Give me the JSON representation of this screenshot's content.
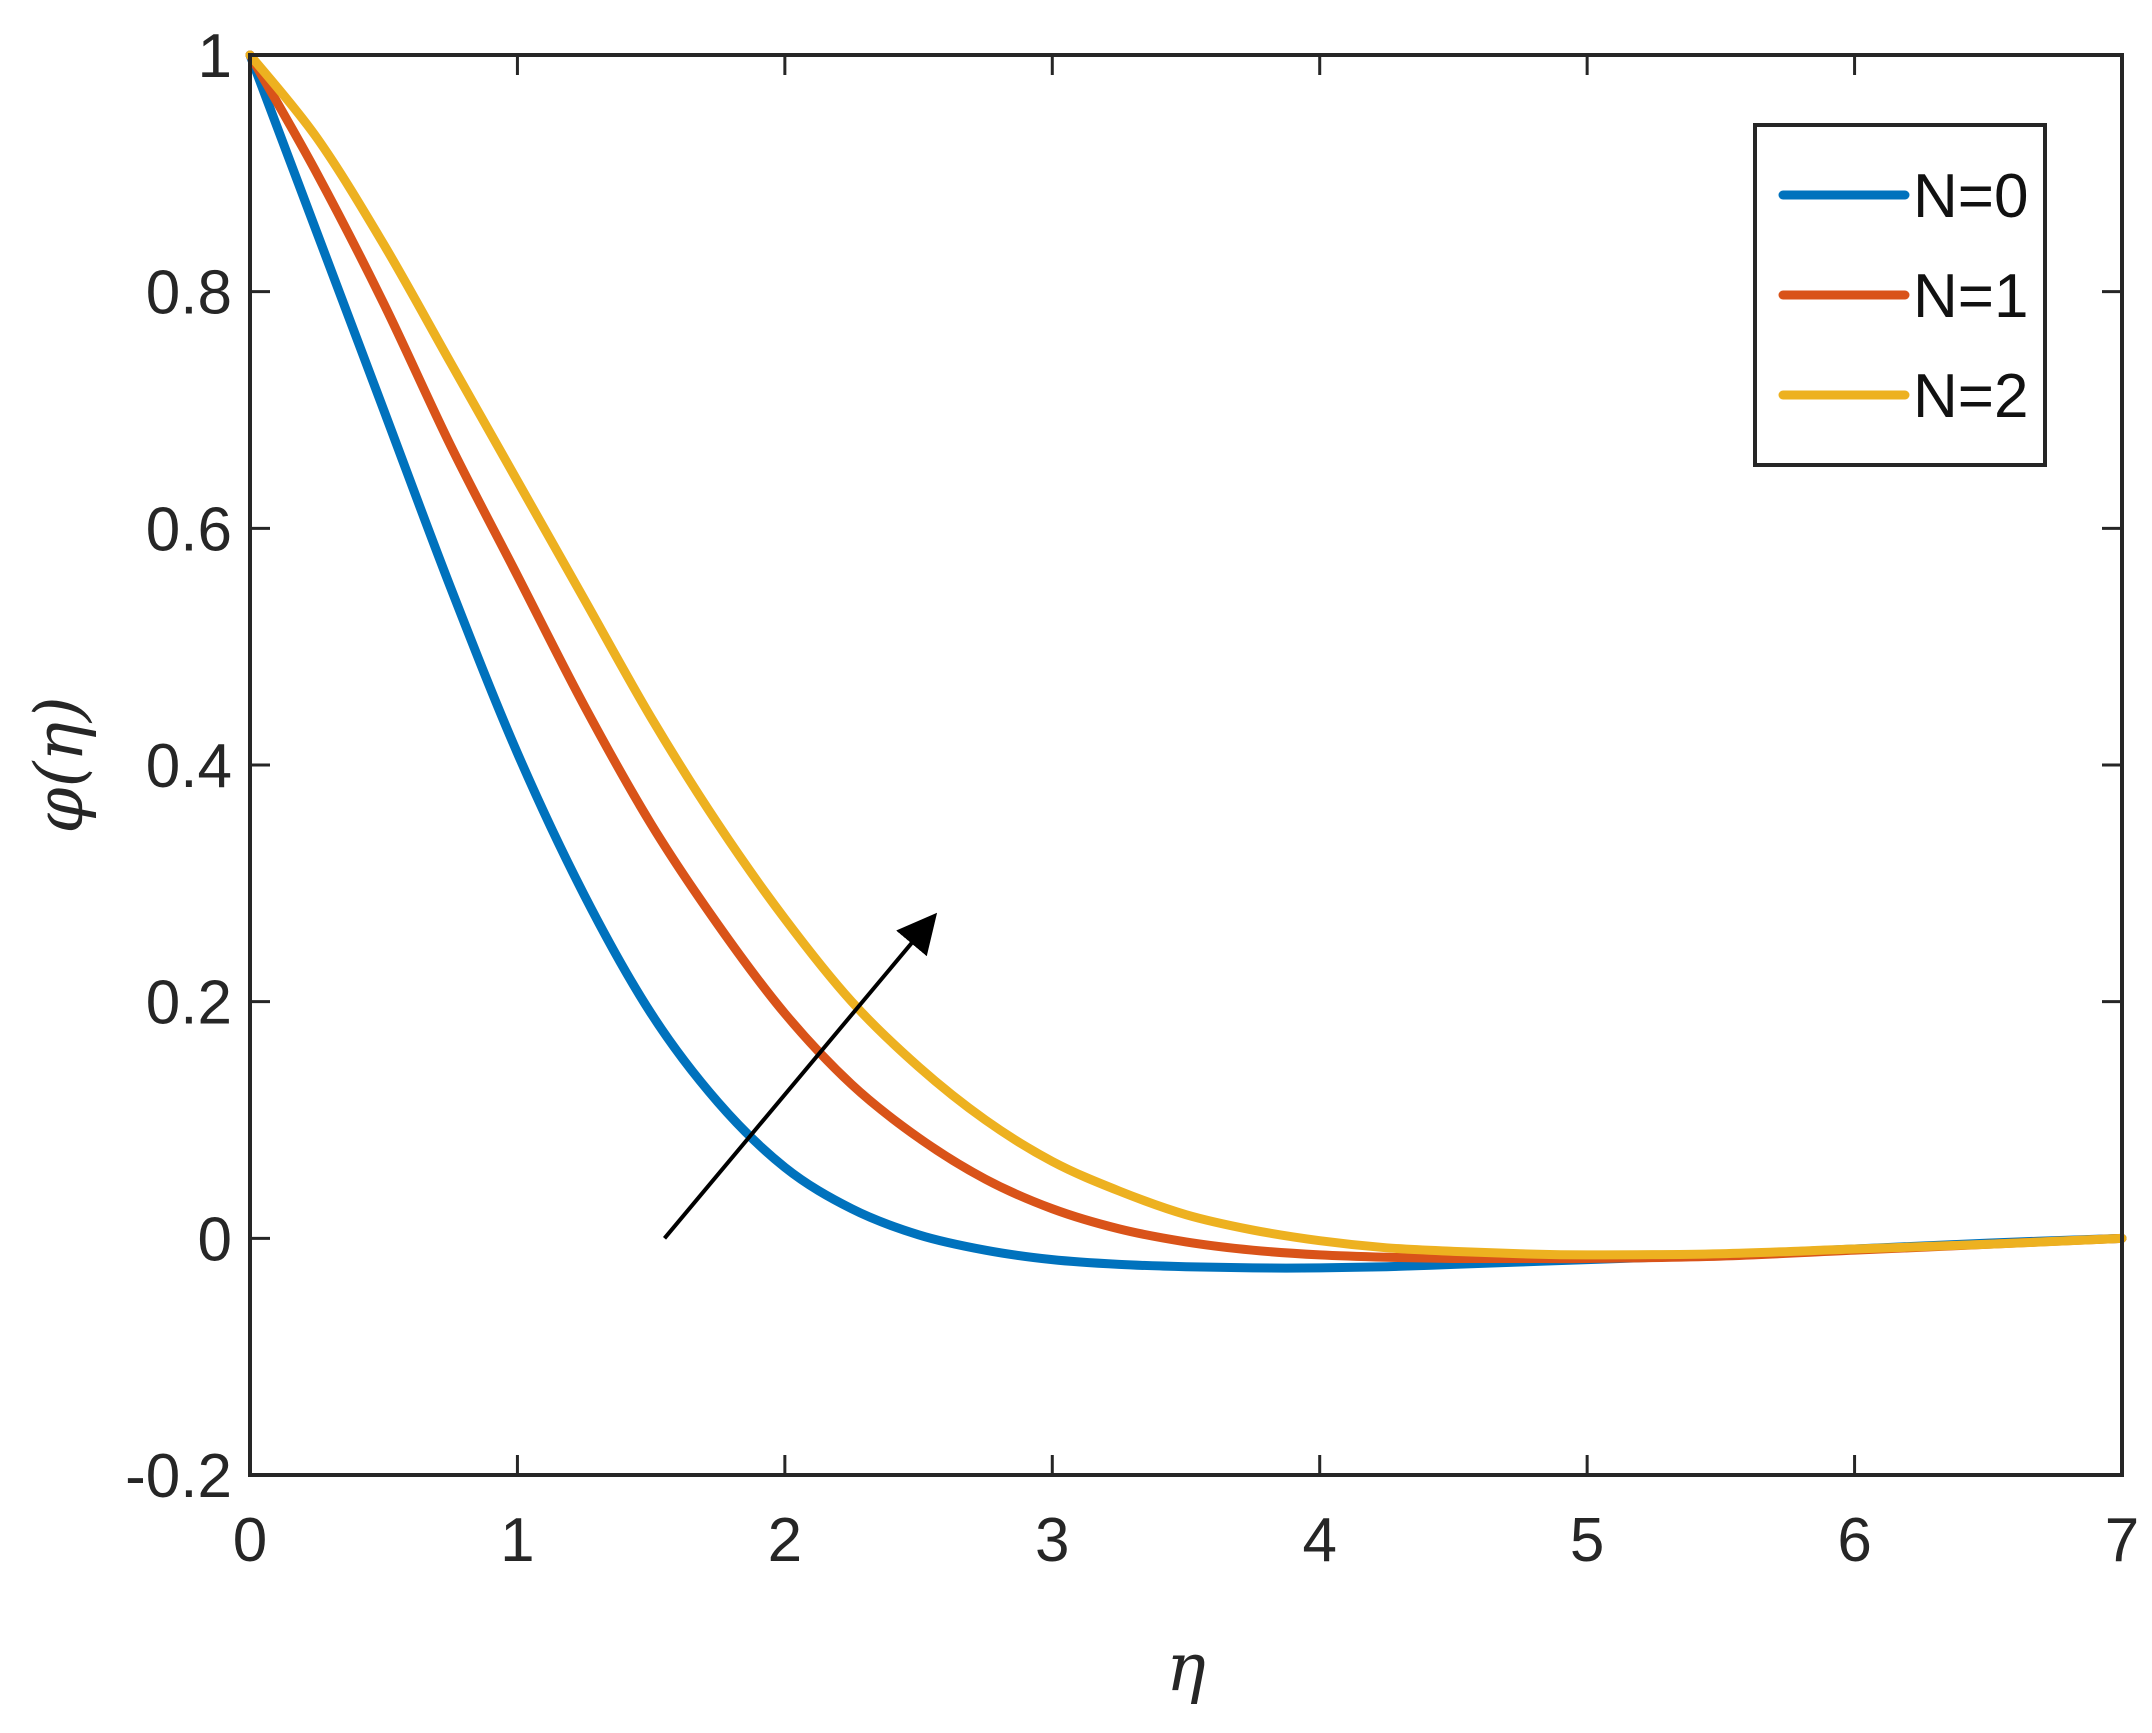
{
  "chart_data": {
    "type": "line",
    "title": "",
    "xlabel": "η",
    "ylabel": "φ(η)",
    "xlim": [
      0,
      7
    ],
    "ylim": [
      -0.2,
      1
    ],
    "grid": false,
    "legend_position": "top-right",
    "x_ticks": [
      0,
      1,
      2,
      3,
      4,
      5,
      6,
      7
    ],
    "x_tick_labels": [
      "0",
      "1",
      "2",
      "3",
      "4",
      "5",
      "6",
      "7"
    ],
    "y_ticks": [
      -0.2,
      0,
      0.2,
      0.4,
      0.6,
      0.8,
      1
    ],
    "y_tick_labels": [
      "-0.2",
      "0",
      "0.2",
      "0.4",
      "0.6",
      "0.8",
      "1"
    ],
    "x": [
      0,
      0.25,
      0.5,
      0.75,
      1,
      1.25,
      1.5,
      1.75,
      2,
      2.25,
      2.5,
      2.75,
      3,
      3.25,
      3.5,
      3.75,
      4,
      4.25,
      4.5,
      4.75,
      5,
      5.5,
      6,
      6.5,
      7
    ],
    "series": [
      {
        "name": "N=0",
        "color": "#0072BD",
        "values": [
          1,
          0.85,
          0.7,
          0.55,
          0.41,
          0.29,
          0.19,
          0.115,
          0.06,
          0.025,
          0.003,
          -0.01,
          -0.018,
          -0.022,
          -0.024,
          -0.025,
          -0.025,
          -0.024,
          -0.022,
          -0.02,
          -0.018,
          -0.014,
          -0.009,
          -0.004,
          0
        ]
      },
      {
        "name": "N=1",
        "color": "#D95319",
        "values": [
          1,
          0.9,
          0.79,
          0.67,
          0.56,
          0.45,
          0.35,
          0.265,
          0.19,
          0.13,
          0.085,
          0.05,
          0.025,
          0.008,
          -0.003,
          -0.01,
          -0.014,
          -0.016,
          -0.017,
          -0.017,
          -0.017,
          -0.015,
          -0.01,
          -0.005,
          0
        ]
      },
      {
        "name": "N=2",
        "color": "#EDB120",
        "values": [
          1,
          0.93,
          0.84,
          0.74,
          0.64,
          0.54,
          0.44,
          0.35,
          0.27,
          0.2,
          0.145,
          0.1,
          0.065,
          0.04,
          0.02,
          0.007,
          -0.002,
          -0.008,
          -0.011,
          -0.013,
          -0.014,
          -0.013,
          -0.009,
          -0.005,
          0
        ]
      }
    ],
    "annotations": [
      {
        "type": "arrow",
        "from": [
          1.55,
          0
        ],
        "to": [
          2.55,
          0.27
        ]
      }
    ]
  }
}
